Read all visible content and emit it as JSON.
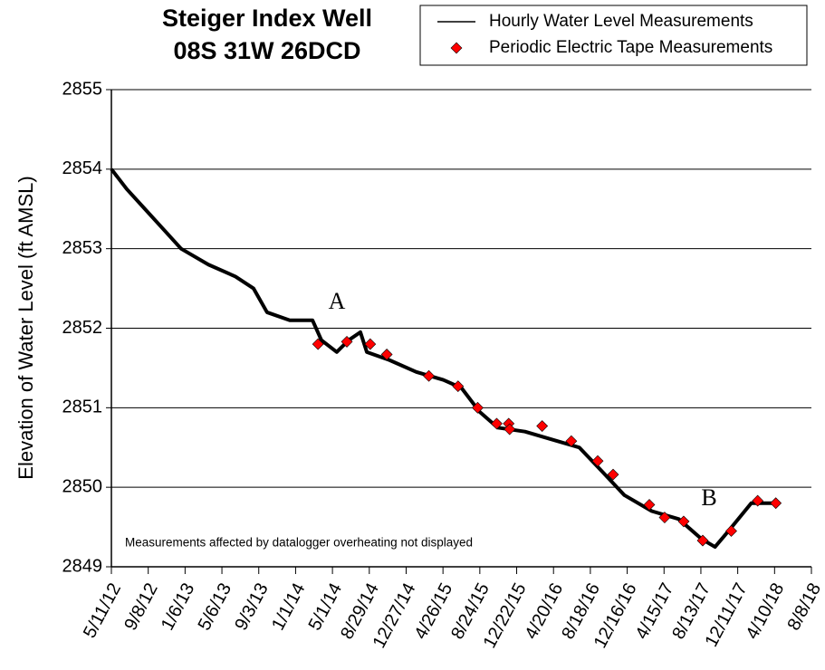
{
  "chart_data": {
    "type": "line",
    "title": "Steiger Index Well",
    "subtitle": "08S 31W 26DCD",
    "y_label": "Elevation of Water Level (ft AMSL)",
    "annotations": [
      "A",
      "B",
      "Measurements affected by datalogger overheating not displayed"
    ],
    "xlim": [
      "2012-05-11",
      "2018-08-08"
    ],
    "xticks": [
      {
        "value": "2012-05-11",
        "label": "5/11/12"
      },
      {
        "value": "2012-09-08",
        "label": "9/8/12"
      },
      {
        "value": "2013-01-06",
        "label": "1/6/13"
      },
      {
        "value": "2013-05-06",
        "label": "5/6/13"
      },
      {
        "value": "2013-09-03",
        "label": "9/3/13"
      },
      {
        "value": "2014-01-01",
        "label": "1/1/14"
      },
      {
        "value": "2014-05-01",
        "label": "5/1/14"
      },
      {
        "value": "2014-08-29",
        "label": "8/29/14"
      },
      {
        "value": "2014-12-27",
        "label": "12/27/14"
      },
      {
        "value": "2015-04-26",
        "label": "4/26/15"
      },
      {
        "value": "2015-08-24",
        "label": "8/24/15"
      },
      {
        "value": "2015-12-22",
        "label": "12/22/15"
      },
      {
        "value": "2016-04-20",
        "label": "4/20/16"
      },
      {
        "value": "2016-08-18",
        "label": "8/18/16"
      },
      {
        "value": "2016-12-16",
        "label": "12/16/16"
      },
      {
        "value": "2017-04-15",
        "label": "4/15/17"
      },
      {
        "value": "2017-08-13",
        "label": "8/13/17"
      },
      {
        "value": "2017-12-11",
        "label": "12/11/17"
      },
      {
        "value": "2018-04-10",
        "label": "4/10/18"
      },
      {
        "value": "2018-08-08",
        "label": "8/8/18"
      }
    ],
    "ylim": [
      2849,
      2855
    ],
    "yticks": [
      2849,
      2850,
      2851,
      2852,
      2853,
      2854,
      2855
    ],
    "grid": true,
    "legend": "top-right",
    "series": [
      {
        "name": "Hourly Water Level Measurements",
        "mode": "line",
        "color": "#000000",
        "x": [
          "2012-05-11",
          "2012-06-30",
          "2012-08-28",
          "2012-10-26",
          "2012-12-24",
          "2013-03-23",
          "2013-06-19",
          "2013-08-17",
          "2013-09-30",
          "2013-12-13",
          "2014-02-25",
          "2014-03-26",
          "2014-05-15",
          "2014-06-23",
          "2014-07-31",
          "2014-08-21",
          "2014-11-02",
          "2015-01-29",
          "2015-04-27",
          "2015-06-25",
          "2015-08-23",
          "2015-10-21",
          "2016-01-18",
          "2016-04-15",
          "2016-07-13",
          "2016-09-25",
          "2016-12-07",
          "2017-03-06",
          "2017-06-02",
          "2017-08-15",
          "2017-09-28",
          "2017-11-11",
          "2018-01-24",
          "2018-04-08"
        ],
        "values": [
          2854.0,
          2853.75,
          2853.5,
          2853.25,
          2853.0,
          2852.8,
          2852.65,
          2852.5,
          2852.2,
          2852.1,
          2852.1,
          2851.85,
          2851.7,
          2851.85,
          2851.95,
          2851.7,
          2851.6,
          2851.45,
          2851.35,
          2851.25,
          2850.95,
          2850.75,
          2850.7,
          2850.6,
          2850.5,
          2850.2,
          2849.9,
          2849.7,
          2849.6,
          2849.35,
          2849.25,
          2849.45,
          2849.8,
          2849.8
        ]
      },
      {
        "name": "Periodic Electric Tape Measurements",
        "mode": "marker",
        "color": "#ff0000",
        "x": [
          "2014-03-15",
          "2014-06-17",
          "2014-09-01",
          "2014-10-25",
          "2015-03-11",
          "2015-06-14",
          "2015-08-17",
          "2015-10-18",
          "2015-11-26",
          "2015-11-29",
          "2016-03-14",
          "2016-06-17",
          "2016-09-11",
          "2016-10-31",
          "2017-02-26",
          "2017-04-17",
          "2017-06-18",
          "2017-08-19",
          "2017-11-20",
          "2018-02-14",
          "2018-04-14"
        ],
        "values": [
          2851.8,
          2851.83,
          2851.8,
          2851.67,
          2851.4,
          2851.27,
          2851.0,
          2850.8,
          2850.8,
          2850.73,
          2850.77,
          2850.58,
          2850.33,
          2850.16,
          2849.78,
          2849.62,
          2849.57,
          2849.33,
          2849.45,
          2849.83,
          2849.8
        ]
      }
    ]
  }
}
